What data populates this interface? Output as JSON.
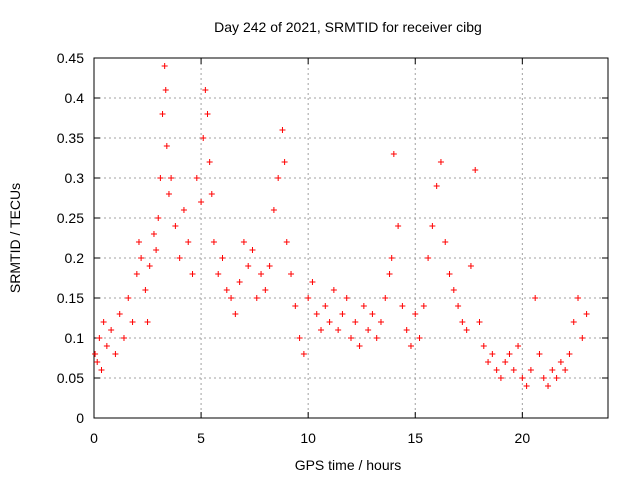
{
  "chart_data": {
    "type": "scatter",
    "title": "Day 242 of 2021, SRMTID for receiver cibg",
    "xlabel": "GPS time / hours",
    "ylabel": "SRMTID / TECUs",
    "xlim": [
      0,
      24
    ],
    "ylim": [
      0,
      0.45
    ],
    "xticks": [
      "0",
      "5",
      "10",
      "15",
      "20"
    ],
    "xtick_values": [
      0,
      5,
      10,
      15,
      20
    ],
    "yticks": [
      "0",
      "0.05",
      "0.1",
      "0.15",
      "0.2",
      "0.25",
      "0.3",
      "0.35",
      "0.4",
      "0.45"
    ],
    "ytick_values": [
      0,
      0.05,
      0.1,
      0.15,
      0.2,
      0.25,
      0.3,
      0.35,
      0.4,
      0.45
    ],
    "grid": true,
    "marker": "+",
    "marker_color": "#ff0000",
    "series": [
      {
        "name": "SRMTID",
        "x": [
          0.05,
          0.15,
          0.25,
          0.35,
          0.45,
          0.6,
          0.8,
          1.0,
          1.2,
          1.4,
          1.6,
          1.8,
          2.0,
          2.1,
          2.2,
          2.4,
          2.5,
          2.6,
          2.8,
          2.9,
          3.0,
          3.1,
          3.2,
          3.3,
          3.35,
          3.4,
          3.5,
          3.6,
          3.8,
          4.0,
          4.2,
          4.4,
          4.6,
          4.8,
          5.0,
          5.1,
          5.2,
          5.3,
          5.4,
          5.5,
          5.6,
          5.8,
          6.0,
          6.2,
          6.4,
          6.6,
          6.8,
          7.0,
          7.2,
          7.4,
          7.6,
          7.8,
          8.0,
          8.2,
          8.4,
          8.6,
          8.8,
          8.9,
          9.0,
          9.2,
          9.4,
          9.6,
          9.8,
          10.0,
          10.2,
          10.4,
          10.6,
          10.8,
          11.0,
          11.2,
          11.4,
          11.6,
          11.8,
          12.0,
          12.2,
          12.4,
          12.6,
          12.8,
          13.0,
          13.2,
          13.4,
          13.6,
          13.8,
          13.9,
          14.0,
          14.2,
          14.4,
          14.6,
          14.8,
          15.0,
          15.2,
          15.4,
          15.6,
          15.8,
          16.0,
          16.2,
          16.4,
          16.6,
          16.8,
          17.0,
          17.2,
          17.4,
          17.6,
          17.8,
          18.0,
          18.2,
          18.4,
          18.6,
          18.8,
          19.0,
          19.2,
          19.4,
          19.6,
          19.8,
          20.0,
          20.2,
          20.4,
          20.6,
          20.8,
          21.0,
          21.2,
          21.4,
          21.6,
          21.8,
          22.0,
          22.2,
          22.4,
          22.6,
          22.8,
          23.0
        ],
        "y": [
          0.08,
          0.07,
          0.1,
          0.06,
          0.12,
          0.09,
          0.11,
          0.08,
          0.13,
          0.1,
          0.15,
          0.12,
          0.18,
          0.22,
          0.2,
          0.16,
          0.12,
          0.19,
          0.23,
          0.21,
          0.25,
          0.3,
          0.38,
          0.44,
          0.41,
          0.34,
          0.28,
          0.3,
          0.24,
          0.2,
          0.26,
          0.22,
          0.18,
          0.3,
          0.27,
          0.35,
          0.41,
          0.38,
          0.32,
          0.28,
          0.22,
          0.18,
          0.2,
          0.16,
          0.15,
          0.13,
          0.17,
          0.22,
          0.19,
          0.21,
          0.15,
          0.18,
          0.16,
          0.19,
          0.26,
          0.3,
          0.36,
          0.32,
          0.22,
          0.18,
          0.14,
          0.1,
          0.08,
          0.15,
          0.17,
          0.13,
          0.11,
          0.14,
          0.12,
          0.16,
          0.11,
          0.13,
          0.15,
          0.1,
          0.12,
          0.09,
          0.14,
          0.11,
          0.13,
          0.1,
          0.12,
          0.15,
          0.18,
          0.2,
          0.33,
          0.24,
          0.14,
          0.11,
          0.09,
          0.13,
          0.1,
          0.14,
          0.2,
          0.24,
          0.29,
          0.32,
          0.22,
          0.18,
          0.16,
          0.14,
          0.12,
          0.11,
          0.19,
          0.31,
          0.12,
          0.09,
          0.07,
          0.08,
          0.06,
          0.05,
          0.07,
          0.08,
          0.06,
          0.09,
          0.05,
          0.04,
          0.06,
          0.15,
          0.08,
          0.05,
          0.04,
          0.06,
          0.05,
          0.07,
          0.06,
          0.08,
          0.12,
          0.15,
          0.1,
          0.13
        ]
      }
    ]
  }
}
